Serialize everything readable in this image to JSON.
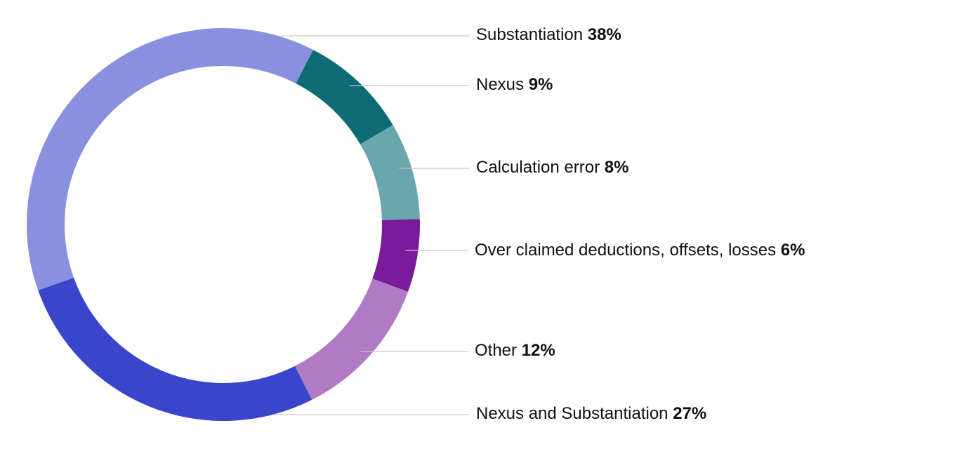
{
  "chart_data": {
    "type": "pie",
    "variant": "donut",
    "title": "",
    "legend": "right",
    "slices": [
      {
        "label": "Nexus",
        "value_label": "9%",
        "value": 9,
        "color": "#0f6b73"
      },
      {
        "label": "Calculation error",
        "value_label": "8%",
        "value": 8,
        "color": "#6aa6ad"
      },
      {
        "label": "Over claimed deductions, offsets, losses",
        "value_label": "6%",
        "value": 6,
        "color": "#791c9c"
      },
      {
        "label": "Other",
        "value_label": "12%",
        "value": 12,
        "color": "#b07bc4"
      },
      {
        "label": "Nexus and Substantiation",
        "value_label": "27%",
        "value": 27,
        "color": "#3a45cc"
      },
      {
        "label": "Substantiation",
        "value_label": "38%",
        "value": 38,
        "color": "#8a90e0"
      }
    ]
  }
}
